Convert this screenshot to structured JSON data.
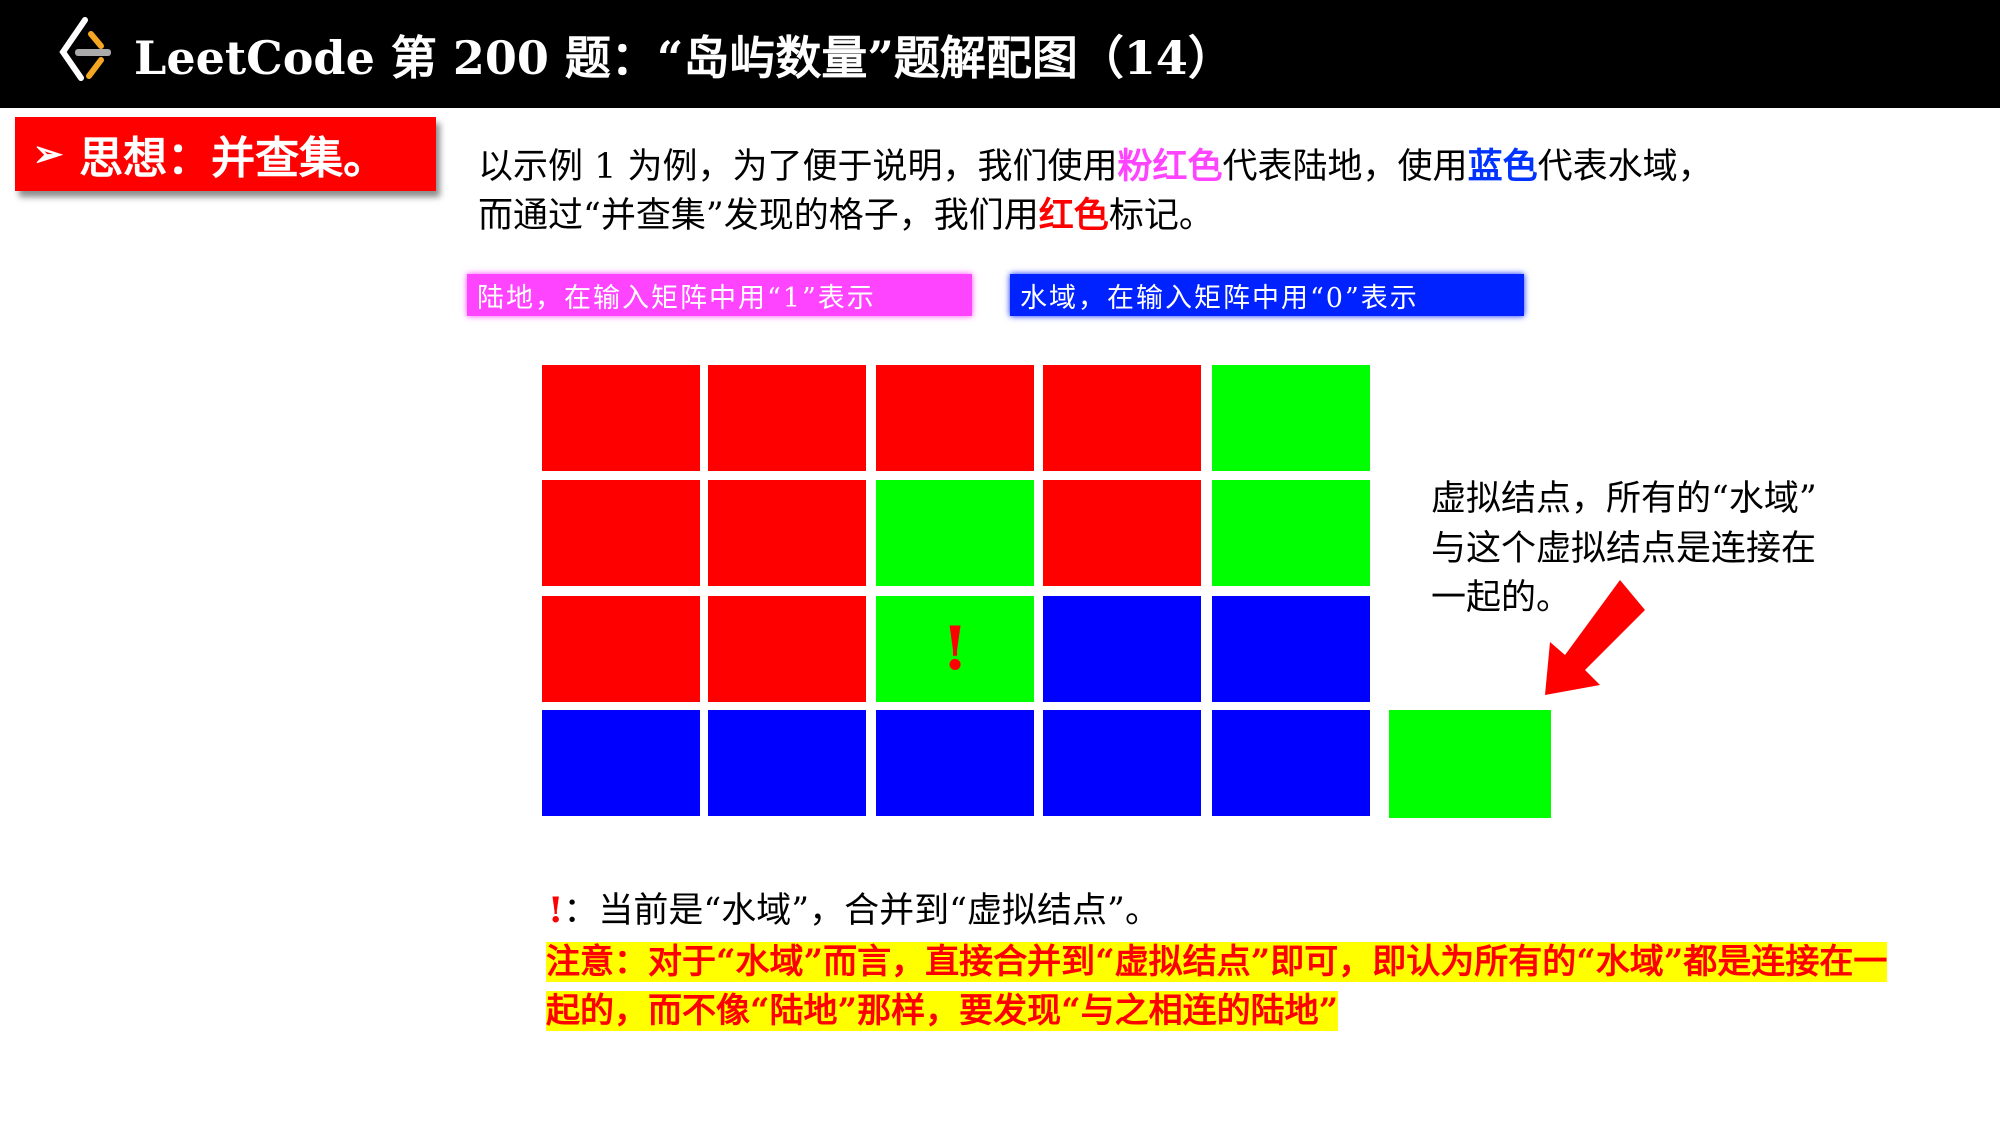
{
  "header": {
    "logo": "LeetCode logo",
    "title": "LeetCode 第 200 题：“岛屿数量”题解配图（14）"
  },
  "section_label": "思想：并查集。",
  "intro": {
    "line1_a": "以示例 1 为例，为了便于说明，我们使用",
    "line1_pink": "粉红色",
    "line1_b": "代表陆地，使用",
    "line1_blue": "蓝色",
    "line1_c": "代表水域，",
    "line2_a": "而通过“并查集”发现的格子，我们用",
    "line2_red": "红色",
    "line2_b": "标记。"
  },
  "legend": {
    "land": "陆地，在输入矩阵中用“1”表示",
    "water": "水域，在输入矩阵中用“0”表示"
  },
  "colors": {
    "red": "#ff0000",
    "green": "#00ff00",
    "blue": "#0000ff",
    "pink": "#ff44ff",
    "yellow": "#ffff00"
  },
  "grid": [
    [
      "red",
      "red",
      "red",
      "red",
      "green"
    ],
    [
      "red",
      "red",
      "green",
      "red",
      "green"
    ],
    [
      "red",
      "red",
      "green",
      "blue",
      "blue"
    ],
    [
      "blue",
      "blue",
      "blue",
      "blue",
      "blue"
    ]
  ],
  "current_cell": {
    "row": 2,
    "col": 2,
    "mark": "!"
  },
  "virtual_node_note": [
    "虚拟结点，所有的“水域”",
    "与这个虚拟结点是连接在",
    "一起的。"
  ],
  "current_note": {
    "mark": "!",
    "text": "：当前是“水域”，合并到“虚拟结点”。"
  },
  "warning": "注意：对于“水域”而言，直接合并到“虚拟结点”即可，即认为所有的“水域”都是连接在一起的，而不像“陆地”那样，要发现“与之相连的陆地”"
}
